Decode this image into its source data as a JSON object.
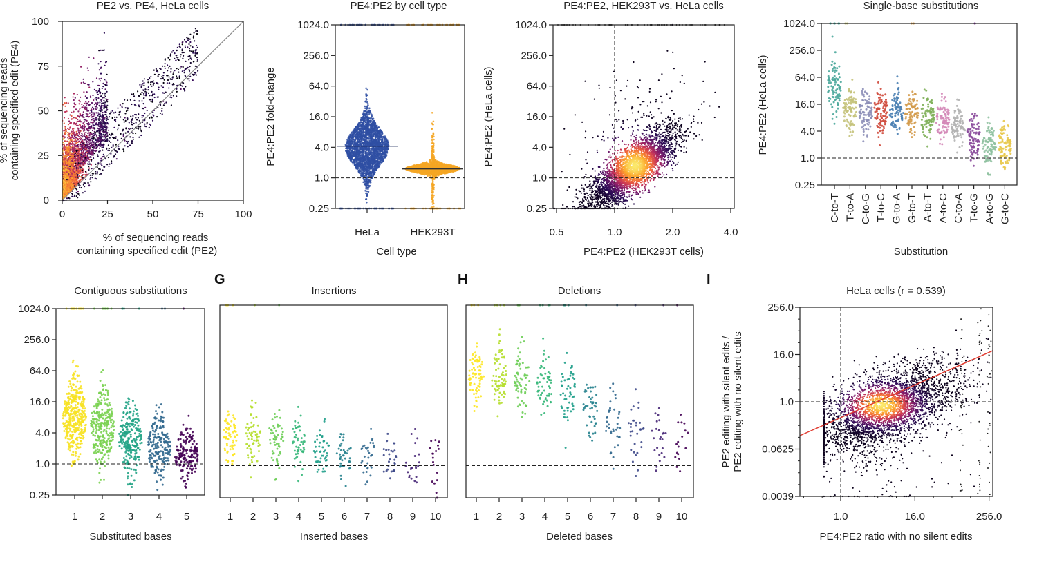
{
  "figure": {
    "panel_letters": [
      "G",
      "H",
      "I"
    ]
  },
  "chart_data": [
    {
      "id": "a",
      "type": "scatter",
      "title": "PE2 vs. PE4, HeLa cells",
      "xlabel_lines": [
        "% of sequencing reads",
        "containing specified edit (PE2)"
      ],
      "ylabel_lines": [
        "% of sequencing reads",
        "containing specified edit (PE4)"
      ],
      "xlim": [
        0,
        100
      ],
      "ylim": [
        0,
        100
      ],
      "xticks": [
        0,
        25,
        50,
        75,
        100
      ],
      "yticks": [
        0,
        25,
        50,
        75,
        100
      ],
      "reference_line": "y = x",
      "density_colored": true
    },
    {
      "id": "b",
      "type": "scatter",
      "title": "PE4:PE2 by cell type",
      "xlabel": "Cell type",
      "ylabel": "PE4:PE2 fold-change",
      "y_scale": "log2",
      "yticks": [
        "1024.0",
        "256.0",
        "64.0",
        "16.0",
        "4.0",
        "1.0",
        "0.25"
      ],
      "categories": [
        "HeLa",
        "HEK293T"
      ],
      "series_colors": [
        "#2f4fa3",
        "#f5a623"
      ],
      "medians": [
        4.2,
        1.5
      ],
      "reference_line": 1.0
    },
    {
      "id": "c",
      "type": "scatter",
      "title": "PE4:PE2, HEK293T vs. HeLa cells",
      "xlabel": "PE4:PE2 (HEK293T cells)",
      "ylabel": "PE4:PE2 (HeLa cells)",
      "x_scale": "log2",
      "y_scale": "log2",
      "xticks": [
        "0.5",
        "1.0",
        "2.0",
        "4.0"
      ],
      "yticks": [
        "1024.0",
        "256.0",
        "64.0",
        "16.0",
        "4.0",
        "1.0",
        "0.25"
      ],
      "reference_lines": {
        "x": 1.0,
        "y": 1.0
      },
      "density_colored": true
    },
    {
      "id": "d",
      "type": "scatter",
      "title": "Single-base substitutions",
      "xlabel": "Substitution",
      "ylabel": "PE4:PE2 (HeLa cells)",
      "y_scale": "log2",
      "yticks": [
        "1024.0",
        "256.0",
        "64.0",
        "16.0",
        "4.0",
        "1.0",
        "0.25"
      ],
      "categories": [
        "C-to-T",
        "T-to-A",
        "C-to-G",
        "T-to-C",
        "G-to-A",
        "G-to-T",
        "A-to-T",
        "A-to-C",
        "C-to-A",
        "T-to-G",
        "A-to-G",
        "G-to-C"
      ],
      "approx_medians": [
        40,
        12,
        10,
        12,
        10,
        11,
        9,
        7,
        5,
        3,
        2,
        2
      ],
      "series_colors": [
        "#4aa79b",
        "#c4c27a",
        "#8d8fb8",
        "#cf4a3c",
        "#4a7fb3",
        "#d39a4a",
        "#7fb05a",
        "#d488b8",
        "#b3b3b3",
        "#8a4a9b",
        "#8fc1a0",
        "#e8c84a"
      ],
      "reference_line": 1.0
    },
    {
      "id": "e",
      "type": "scatter",
      "title": "Contiguous substitutions",
      "xlabel": "Substituted bases",
      "y_scale": "log2",
      "yticks": [
        "1024.0",
        "256.0",
        "64.0",
        "16.0",
        "4.0",
        "1.0",
        "0.25"
      ],
      "categories": [
        "1",
        "2",
        "3",
        "4",
        "5"
      ],
      "approx_medians": [
        8,
        5,
        3,
        2,
        1.5
      ],
      "series_colors": [
        "#f7e225",
        "#7ad151",
        "#21a385",
        "#31688e",
        "#440154"
      ],
      "reference_line": 1.0
    },
    {
      "id": "g",
      "type": "scatter",
      "title": "Insertions",
      "xlabel": "Inserted bases",
      "y_scale": "log2",
      "categories": [
        "1",
        "2",
        "3",
        "4",
        "5",
        "6",
        "7",
        "8",
        "9",
        "10"
      ],
      "approx_medians": [
        3.5,
        3.5,
        3,
        2.5,
        2,
        1.5,
        1.5,
        1.4,
        1.4,
        1.4
      ],
      "series_colors": [
        "#fde725",
        "#b5de2b",
        "#6ece58",
        "#35b779",
        "#1f9e89",
        "#26828e",
        "#31688e",
        "#3e4989",
        "#482878",
        "#440154"
      ],
      "reference_line": 1.0
    },
    {
      "id": "h",
      "type": "scatter",
      "title": "Deletions",
      "xlabel": "Deleted bases",
      "y_scale": "log2",
      "categories": [
        "1",
        "2",
        "3",
        "4",
        "5",
        "6",
        "7",
        "8",
        "9",
        "10"
      ],
      "approx_medians": [
        50,
        45,
        40,
        30,
        25,
        12,
        6,
        5,
        3,
        2.5
      ],
      "series_colors": [
        "#fde725",
        "#b5de2b",
        "#6ece58",
        "#35b779",
        "#1f9e89",
        "#26828e",
        "#31688e",
        "#3e4989",
        "#482878",
        "#440154"
      ],
      "reference_line": 1.0
    },
    {
      "id": "i",
      "type": "scatter",
      "title": "HeLa cells (r = 0.539)",
      "xlabel": "PE4:PE2 ratio with no silent edits",
      "ylabel_lines": [
        "PE2 editing with silent edits /",
        "PE2 editing with no silent edits"
      ],
      "x_scale": "log2",
      "y_scale": "log2",
      "xticks": [
        "1.0",
        "16.0",
        "256.0"
      ],
      "yticks": [
        "256.0",
        "16.0",
        "1.0",
        "0.0625",
        "0.0039"
      ],
      "reference_lines": {
        "x": 1.0,
        "y": 1.0
      },
      "regression_line_color": "#e03a2f",
      "density_colored": true
    }
  ]
}
